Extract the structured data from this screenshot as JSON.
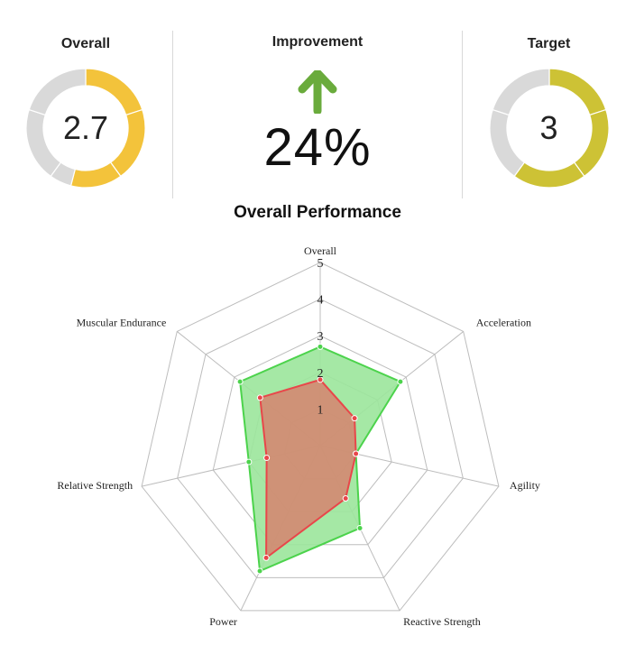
{
  "kpis": {
    "overall": {
      "title": "Overall",
      "value": "2.7",
      "fraction": 0.54,
      "color": "#f3c33b"
    },
    "improvement": {
      "title": "Improvement",
      "value": "24%",
      "color": "#6aab3c"
    },
    "target": {
      "title": "Target",
      "value": "3",
      "fraction": 0.6,
      "color": "#cdc235"
    }
  },
  "chart_data": {
    "type": "radar",
    "title": "Overall Performance",
    "axes": [
      "Overall",
      "Acceleration",
      "Agility",
      "Reactive Strength",
      "Power",
      "Relative Strength",
      "Muscular Endurance"
    ],
    "ticks": [
      "1",
      "2",
      "3",
      "4",
      "5"
    ],
    "range": [
      0,
      5
    ],
    "grid": true,
    "series": [
      {
        "values": [
          2.7,
          2.8,
          1.0,
          2.5,
          3.8,
          2.0,
          2.8
        ],
        "color": "#4cd34c",
        "fill": "#9be69b"
      },
      {
        "values": [
          1.8,
          1.2,
          1.0,
          1.6,
          3.4,
          1.5,
          2.1
        ],
        "color": "#e8474a",
        "fill": "#d6836e"
      }
    ]
  },
  "donut_colors": {
    "empty": "#d9d9d9"
  }
}
